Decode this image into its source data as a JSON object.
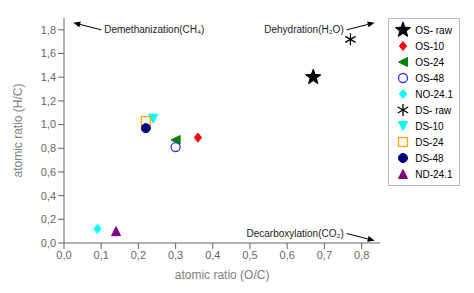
{
  "chart_data": {
    "type": "scatter",
    "xlabel": "atomic ratio (O/C)",
    "ylabel": "atomic ratio (H/C)",
    "xlim": [
      0.0,
      0.85
    ],
    "ylim": [
      0.0,
      1.9
    ],
    "xticks": [
      {
        "value": 0.0,
        "label": "0,0"
      },
      {
        "value": 0.1,
        "label": "0,1"
      },
      {
        "value": 0.2,
        "label": "0,2"
      },
      {
        "value": 0.3,
        "label": "0,3"
      },
      {
        "value": 0.4,
        "label": "0,4"
      },
      {
        "value": 0.5,
        "label": "0,5"
      },
      {
        "value": 0.6,
        "label": "0,6"
      },
      {
        "value": 0.7,
        "label": "0,7"
      },
      {
        "value": 0.8,
        "label": "0,8"
      }
    ],
    "yticks": [
      {
        "value": 0.0,
        "label": "0,0"
      },
      {
        "value": 0.2,
        "label": "0,2"
      },
      {
        "value": 0.4,
        "label": "0,4"
      },
      {
        "value": 0.6,
        "label": "0,6"
      },
      {
        "value": 0.8,
        "label": "0,8"
      },
      {
        "value": 1.0,
        "label": "1,0"
      },
      {
        "value": 1.2,
        "label": "1,2"
      },
      {
        "value": 1.4,
        "label": "1,4"
      },
      {
        "value": 1.6,
        "label": "1,6"
      },
      {
        "value": 1.8,
        "label": "1,8"
      }
    ],
    "grid": false,
    "legend": "right",
    "series": [
      {
        "name": "OS- raw",
        "color": "black",
        "marker": "star",
        "x": [
          0.67
        ],
        "values": [
          1.4
        ]
      },
      {
        "name": "OS-10",
        "color": "red",
        "marker": "diamond",
        "x": [
          0.36
        ],
        "values": [
          0.89
        ]
      },
      {
        "name": "OS-24",
        "color": "green",
        "marker": "triangle-left",
        "x": [
          0.3
        ],
        "values": [
          0.87
        ]
      },
      {
        "name": "OS-48",
        "color": "#3333ff",
        "marker": "circle-open",
        "x": [
          0.3
        ],
        "values": [
          0.81
        ]
      },
      {
        "name": "NO-24.1",
        "color": "cyan",
        "marker": "diamond",
        "x": [
          0.09
        ],
        "values": [
          0.12
        ]
      },
      {
        "name": "DS- raw",
        "color": "black",
        "marker": "asterisk",
        "x": [
          0.77
        ],
        "values": [
          1.72
        ]
      },
      {
        "name": "DS-10",
        "color": "cyan",
        "marker": "triangle-down",
        "x": [
          0.24
        ],
        "values": [
          1.05
        ]
      },
      {
        "name": "DS-24",
        "color": "orange",
        "marker": "square-open",
        "x": [
          0.22
        ],
        "values": [
          1.03
        ]
      },
      {
        "name": "DS-48",
        "color": "navy",
        "marker": "circle",
        "x": [
          0.22
        ],
        "values": [
          0.97
        ]
      },
      {
        "name": "ND-24.1",
        "color": "purple",
        "marker": "triangle-up",
        "x": [
          0.14
        ],
        "values": [
          0.1
        ]
      }
    ],
    "annotations": [
      "Demethanization(CH₄)",
      "Dehydration(H₂O)",
      "Decarboxylation(CO₂)"
    ]
  }
}
